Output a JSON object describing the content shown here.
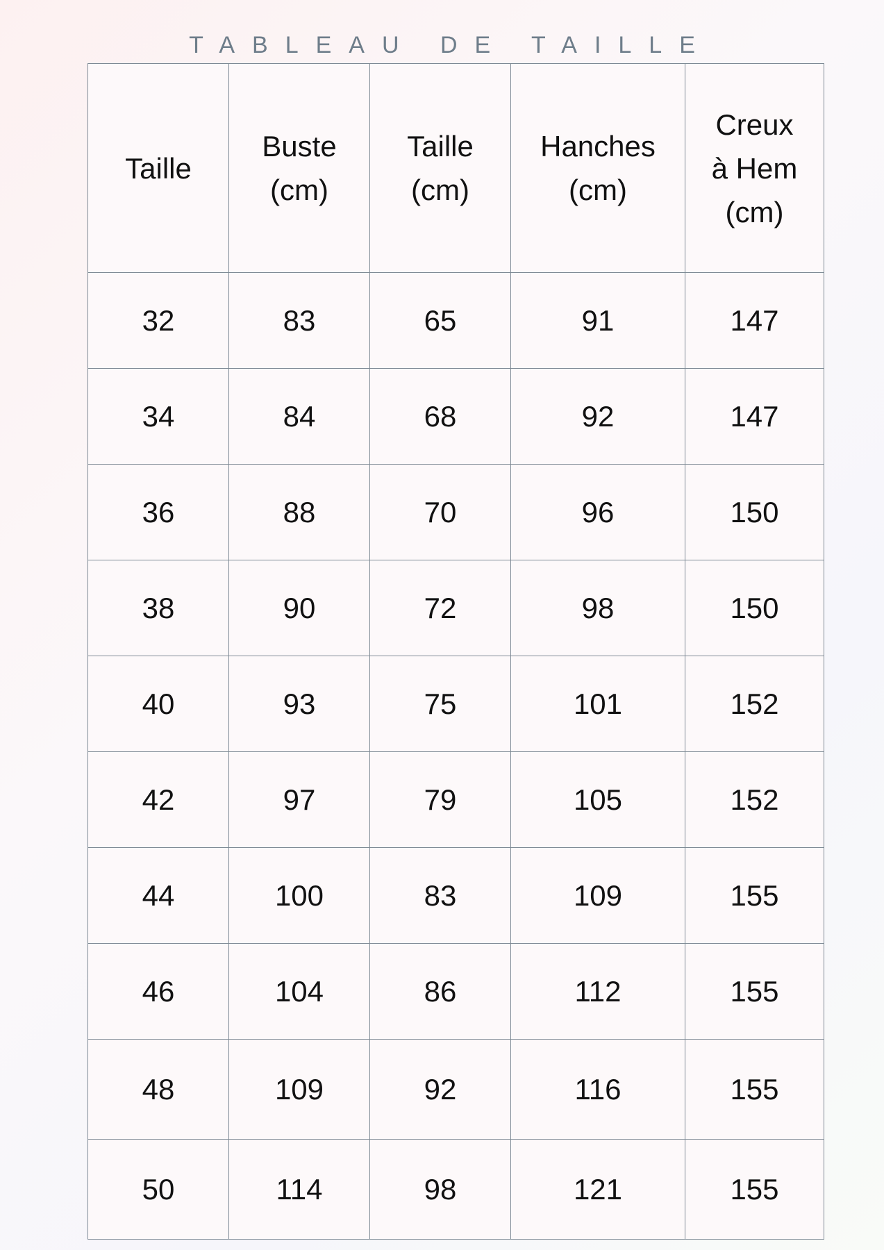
{
  "title": "TABLEAU DE TAILLE",
  "table": {
    "headers": [
      [
        "Taille"
      ],
      [
        "Buste",
        "(cm)"
      ],
      [
        "Taille",
        "(cm)"
      ],
      [
        "Hanches",
        "(cm)"
      ],
      [
        "Creux",
        "à Hem",
        "(cm)"
      ]
    ],
    "rows": [
      [
        "32",
        "83",
        "65",
        "91",
        "147"
      ],
      [
        "34",
        "84",
        "68",
        "92",
        "147"
      ],
      [
        "36",
        "88",
        "70",
        "96",
        "150"
      ],
      [
        "38",
        "90",
        "72",
        "98",
        "150"
      ],
      [
        "40",
        "93",
        "75",
        "101",
        "152"
      ],
      [
        "42",
        "97",
        "79",
        "105",
        "152"
      ],
      [
        "44",
        "100",
        "83",
        "109",
        "155"
      ],
      [
        "46",
        "104",
        "86",
        "112",
        "155"
      ],
      [
        "48",
        "109",
        "92",
        "116",
        "155"
      ],
      [
        "50",
        "114",
        "98",
        "121",
        "155"
      ]
    ]
  },
  "colors": {
    "border": "#7d8994",
    "title": "#6e7d8a",
    "text": "#111111"
  }
}
